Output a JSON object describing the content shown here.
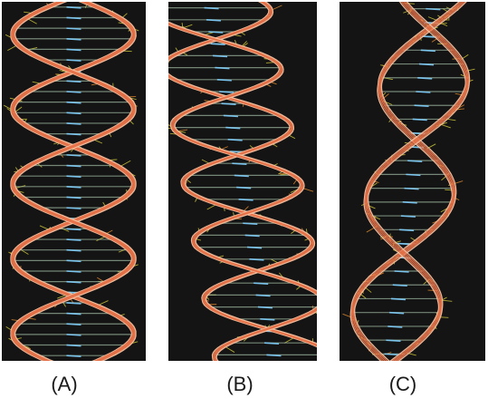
{
  "figure": {
    "panels": [
      {
        "id": "A",
        "label": "(A)",
        "depicts": "dna-double-helix-ribbon",
        "ribbon_color": "#e8734a",
        "atom_color": "#c9c23a",
        "base_color": "#7fd0ff"
      },
      {
        "id": "B",
        "label": "(B)",
        "depicts": "dna-double-helix-ribbon",
        "ribbon_color": "#e8734a",
        "atom_color": "#c9c23a",
        "base_color": "#7fd0ff"
      },
      {
        "id": "C",
        "label": "(C)",
        "depicts": "dna-double-helix-ribbon",
        "ribbon_color": "#e8734a",
        "atom_color": "#c9c23a",
        "base_color": "#7fd0ff"
      }
    ]
  }
}
